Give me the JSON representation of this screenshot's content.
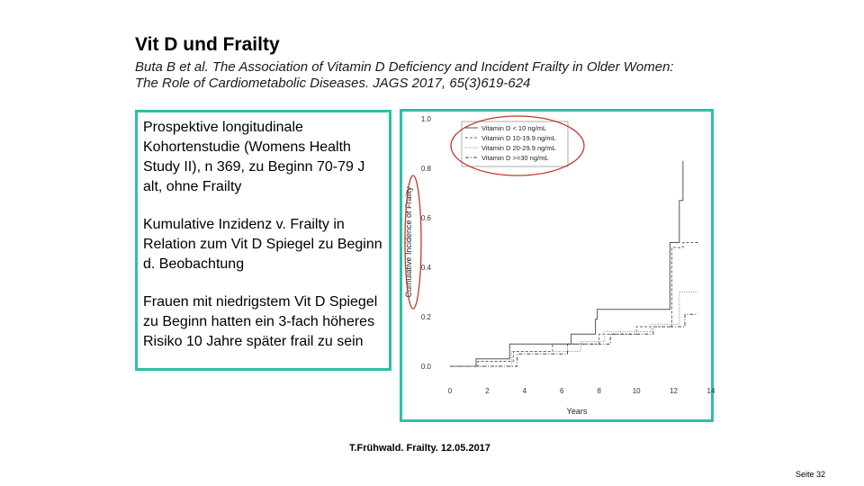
{
  "slide": {
    "title": "Vit D und Frailty",
    "subtitle_line1": "Buta B et al. The Association of Vitamin D Deficiency and Incident Frailty in Older Women:",
    "subtitle_line2": "The Role of Cardiometabolic Diseases. JAGS 2017, 65(3)619-624",
    "paragraphs": [
      "Prospektive longitudinale Kohortenstudie (Womens Health Study II), n 369, zu Beginn 70-79 J alt, ohne Frailty",
      "Kumulative Inzidenz v. Frailty in Relation zum Vit D Spiegel zu Beginn d. Beobachtung",
      "Frauen mit niedrigstem Vit D Spiegel zu Beginn hatten ein 3-fach höheres Risiko 10 Jahre später frail zu sein"
    ],
    "footer": "T.Frühwald. Frailty. 12.05.2017",
    "page": "Seite 32",
    "accent_color": "#2ebfa5",
    "highlight_color": "#c0392b"
  },
  "chart_data": {
    "type": "line",
    "step": true,
    "xlabel": "Years",
    "ylabel": "Cumulative Incidence of Frailty",
    "xlim": [
      0,
      14
    ],
    "ylim": [
      0,
      1.0
    ],
    "x_ticks": [
      "0",
      "2",
      "4",
      "6",
      "8",
      "10",
      "12",
      "14"
    ],
    "y_ticks": [
      "0.0",
      "0.2",
      "0.4",
      "0.6",
      "0.8",
      "1.0"
    ],
    "legend_position": "top-left",
    "series": [
      {
        "name": "Vitamin D < 10 ng/mL",
        "dash": "solid",
        "color": "#555555",
        "points": [
          [
            0,
            0
          ],
          [
            1.4,
            0
          ],
          [
            1.4,
            0.03
          ],
          [
            3.2,
            0.03
          ],
          [
            3.2,
            0.09
          ],
          [
            6.5,
            0.09
          ],
          [
            6.5,
            0.13
          ],
          [
            7.8,
            0.13
          ],
          [
            7.8,
            0.19
          ],
          [
            7.9,
            0.19
          ],
          [
            7.9,
            0.23
          ],
          [
            11.8,
            0.23
          ],
          [
            11.8,
            0.5
          ],
          [
            12.3,
            0.5
          ],
          [
            12.3,
            0.67
          ],
          [
            12.5,
            0.67
          ],
          [
            12.5,
            0.83
          ]
        ]
      },
      {
        "name": "Vitamin D 10-19.9 ng/mL",
        "dash": "dashed",
        "color": "#666666",
        "points": [
          [
            0,
            0
          ],
          [
            1.5,
            0
          ],
          [
            1.5,
            0.02
          ],
          [
            3.4,
            0.02
          ],
          [
            3.4,
            0.06
          ],
          [
            5.5,
            0.06
          ],
          [
            5.5,
            0.09
          ],
          [
            8.0,
            0.09
          ],
          [
            8.0,
            0.13
          ],
          [
            10.0,
            0.13
          ],
          [
            10.0,
            0.16
          ],
          [
            11.9,
            0.16
          ],
          [
            11.9,
            0.48
          ],
          [
            12.5,
            0.48
          ],
          [
            12.5,
            0.5
          ],
          [
            13.3,
            0.5
          ]
        ]
      },
      {
        "name": "Vitamin D 20-29.9 ng/mL",
        "dash": "dotted",
        "color": "#888888",
        "points": [
          [
            0,
            0
          ],
          [
            3.3,
            0
          ],
          [
            3.3,
            0.06
          ],
          [
            7.0,
            0.06
          ],
          [
            7.0,
            0.1
          ],
          [
            8.3,
            0.1
          ],
          [
            8.3,
            0.14
          ],
          [
            10.8,
            0.14
          ],
          [
            10.8,
            0.17
          ],
          [
            12.3,
            0.17
          ],
          [
            12.3,
            0.3
          ],
          [
            13.3,
            0.3
          ]
        ]
      },
      {
        "name": "Vitamin D >=30 ng/mL",
        "dash": "dashdot",
        "color": "#444444",
        "points": [
          [
            0,
            0
          ],
          [
            3.6,
            0
          ],
          [
            3.6,
            0.05
          ],
          [
            6.3,
            0.05
          ],
          [
            6.3,
            0.09
          ],
          [
            8.6,
            0.09
          ],
          [
            8.6,
            0.13
          ],
          [
            10.9,
            0.13
          ],
          [
            10.9,
            0.16
          ],
          [
            12.6,
            0.16
          ],
          [
            12.6,
            0.21
          ],
          [
            13.3,
            0.21
          ]
        ]
      }
    ]
  }
}
